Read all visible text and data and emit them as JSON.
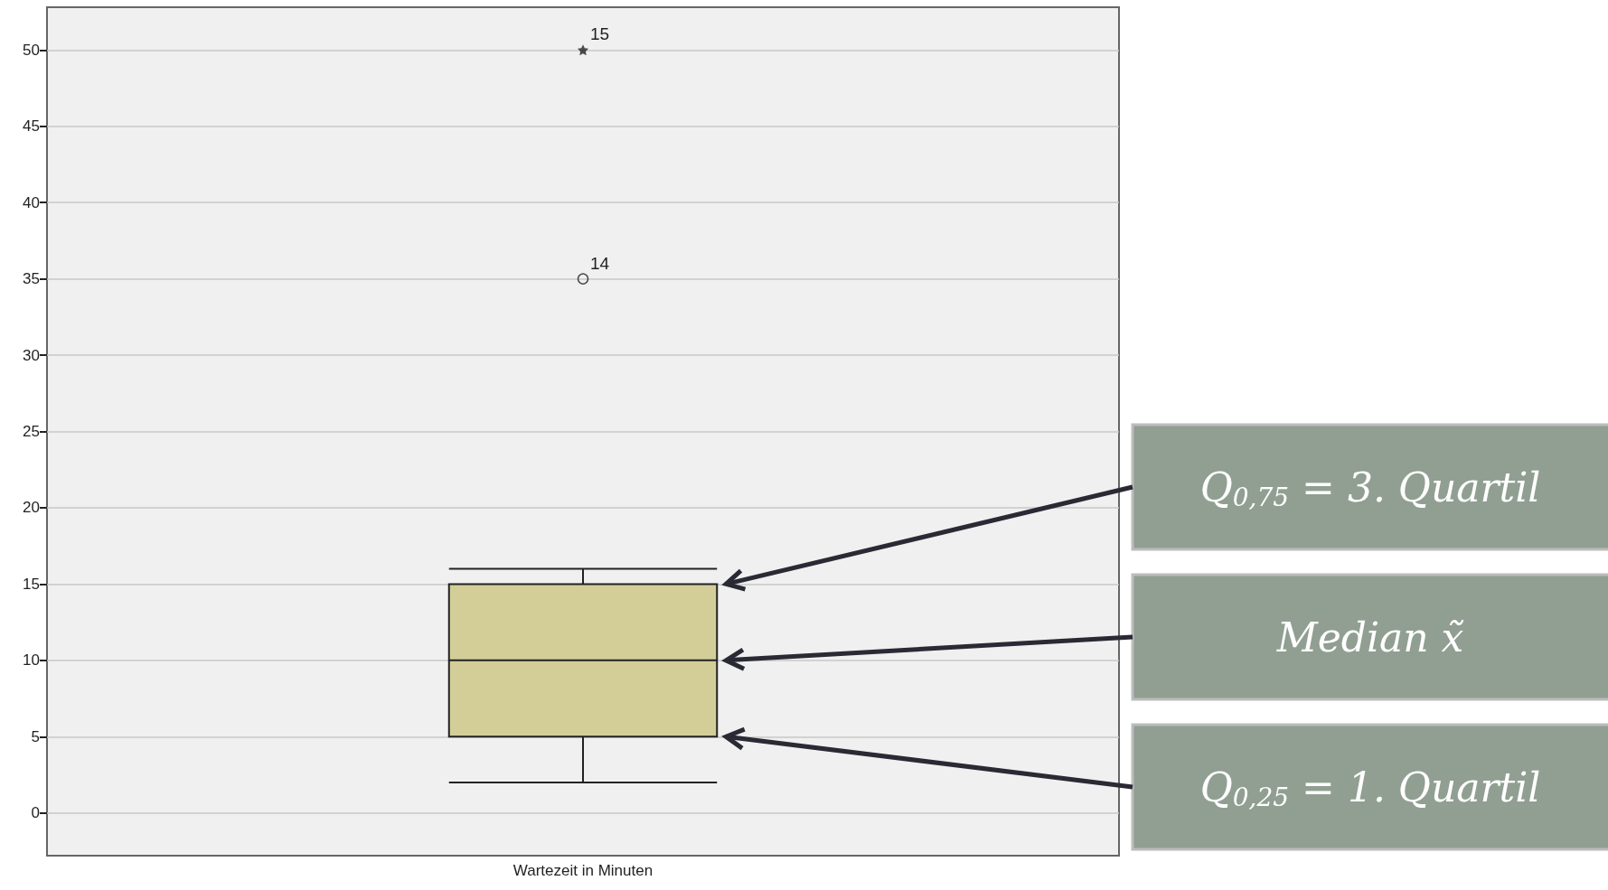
{
  "chart_data": {
    "type": "box",
    "categories": [
      "Wartezeit in Minuten"
    ],
    "color": "#d3ce98",
    "boxes": [
      {
        "low": 2,
        "q1": 5,
        "median": 10,
        "q3": 15,
        "high": 16,
        "outliers": [
          35,
          50
        ]
      }
    ],
    "ylim": [
      -2.8,
      52.8
    ],
    "yticks": [
      0,
      5,
      10,
      15,
      20,
      25,
      30,
      35,
      40,
      45,
      50
    ],
    "grid": true,
    "annotations": [
      "14",
      "15",
      "Q$_{0,75}$ = 3. Quartil",
      "Median x̃",
      "Q$_{0,25}$ = 1. Quartil"
    ]
  }
}
